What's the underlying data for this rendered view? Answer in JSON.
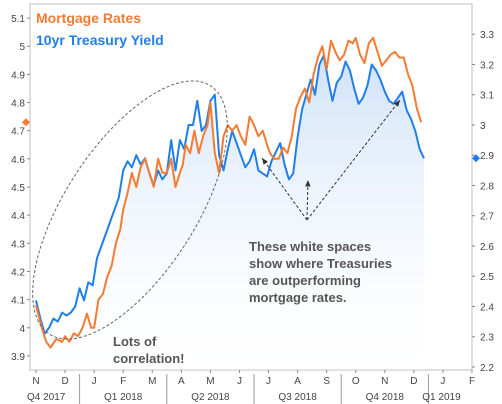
{
  "chart_data": {
    "type": "line",
    "title": "",
    "legend": [
      "Mortgage Rates",
      "10yr Treasury Yield"
    ],
    "legend_placement": "top-left",
    "colors": {
      "mortgage": "#f47b32",
      "treasury": "#1f7ee8",
      "fill_top": "#cfe2f7",
      "grid": "#bfbfbf",
      "annotation_text": "#555555"
    },
    "left_axis": {
      "label": "",
      "range": [
        3.85,
        5.15
      ],
      "ticks": [
        "3.9",
        "4",
        "4.1",
        "4.2",
        "4.3",
        "4.4",
        "4.5",
        "4.6",
        "4.7",
        "4.8",
        "4.9",
        "5",
        "5.1"
      ]
    },
    "right_axis": {
      "label": "",
      "range": [
        2.19,
        3.4
      ],
      "ticks": [
        "2.2",
        "2.3",
        "2.4",
        "2.5",
        "2.6",
        "2.7",
        "2.8",
        "2.9",
        "3",
        "3.1",
        "3.2",
        "3.3"
      ]
    },
    "x_months": [
      "N",
      "D",
      "J",
      "F",
      "M",
      "A",
      "M",
      "J",
      "J",
      "A",
      "S",
      "O",
      "N",
      "D",
      "J",
      "F"
    ],
    "x_quarters": [
      "Q4 2017",
      "Q1 2018",
      "Q2 2018",
      "Q3 2018",
      "Q4 2018",
      "Q1 2019"
    ],
    "last_values": {
      "mortgage": 4.73,
      "treasury": 2.89
    },
    "series": [
      {
        "name": "Mortgage Rates",
        "axis": "left",
        "x": [
          0,
          0.2,
          0.35,
          0.5,
          0.7,
          0.9,
          1.0,
          1.15,
          1.3,
          1.45,
          1.6,
          1.75,
          1.9,
          2.0,
          2.15,
          2.3,
          2.45,
          2.6,
          2.75,
          2.9,
          3.0,
          3.15,
          3.3,
          3.45,
          3.6,
          3.75,
          3.9,
          4.05,
          4.2,
          4.35,
          4.5,
          4.65,
          4.8,
          4.95,
          5.05,
          5.15,
          5.3,
          5.45,
          5.6,
          5.75,
          5.9,
          6.0,
          6.15,
          6.3,
          6.45,
          6.6,
          6.75,
          6.9,
          7.05,
          7.2,
          7.35,
          7.5,
          7.65,
          7.8,
          7.95,
          8.05,
          8.2,
          8.35,
          8.5,
          8.65,
          8.8,
          8.95,
          9.1,
          9.25,
          9.4,
          9.55,
          9.7,
          9.85,
          10.0,
          10.15,
          10.3,
          10.45,
          10.6,
          10.75,
          10.9,
          11.0,
          11.15,
          11.3,
          11.45,
          11.6,
          11.75,
          11.9,
          12.05,
          12.2,
          12.35,
          12.5,
          12.65,
          12.8,
          12.95,
          13.1,
          13.25
        ],
        "values": [
          4.08,
          4.0,
          3.95,
          3.93,
          3.96,
          3.95,
          3.97,
          3.95,
          3.98,
          3.97,
          4.0,
          4.05,
          4.0,
          4.0,
          4.1,
          4.12,
          4.18,
          4.22,
          4.3,
          4.35,
          4.42,
          4.48,
          4.55,
          4.5,
          4.57,
          4.6,
          4.55,
          4.5,
          4.6,
          4.55,
          4.55,
          4.6,
          4.5,
          4.55,
          4.58,
          4.65,
          4.62,
          4.7,
          4.62,
          4.68,
          4.72,
          4.8,
          4.62,
          4.55,
          4.68,
          4.72,
          4.7,
          4.72,
          4.68,
          4.65,
          4.75,
          4.72,
          4.68,
          4.7,
          4.65,
          4.62,
          4.6,
          4.6,
          4.64,
          4.62,
          4.68,
          4.78,
          4.82,
          4.85,
          4.8,
          4.9,
          4.96,
          5.0,
          4.92,
          5.02,
          4.98,
          4.95,
          4.97,
          5.02,
          5.01,
          5.03,
          4.97,
          4.94,
          5.01,
          5.03,
          4.98,
          4.93,
          4.95,
          4.97,
          4.98,
          4.96,
          4.96,
          4.9,
          4.86,
          4.78,
          4.73
        ]
      },
      {
        "name": "10yr Treasury Yield",
        "axis": "right",
        "x": [
          0,
          0.15,
          0.3,
          0.45,
          0.6,
          0.75,
          0.9,
          1.05,
          1.2,
          1.35,
          1.5,
          1.65,
          1.8,
          1.95,
          2.1,
          2.25,
          2.4,
          2.55,
          2.7,
          2.85,
          3.0,
          3.15,
          3.3,
          3.45,
          3.6,
          3.75,
          3.9,
          4.05,
          4.2,
          4.35,
          4.5,
          4.65,
          4.8,
          4.95,
          5.1,
          5.25,
          5.4,
          5.55,
          5.7,
          5.85,
          6.0,
          6.15,
          6.3,
          6.45,
          6.6,
          6.75,
          6.9,
          7.05,
          7.2,
          7.35,
          7.5,
          7.65,
          7.8,
          7.95,
          8.1,
          8.25,
          8.4,
          8.55,
          8.7,
          8.85,
          9.0,
          9.15,
          9.3,
          9.45,
          9.6,
          9.75,
          9.9,
          10.05,
          10.2,
          10.35,
          10.5,
          10.65,
          10.8,
          10.95,
          11.1,
          11.25,
          11.4,
          11.55,
          11.7,
          11.85,
          12.0,
          12.15,
          12.3,
          12.45,
          12.6,
          12.75,
          12.9,
          13.05,
          13.2,
          13.35
        ],
        "values": [
          2.42,
          2.36,
          2.31,
          2.33,
          2.36,
          2.35,
          2.38,
          2.37,
          2.38,
          2.4,
          2.46,
          2.42,
          2.48,
          2.47,
          2.56,
          2.6,
          2.64,
          2.68,
          2.72,
          2.76,
          2.85,
          2.88,
          2.86,
          2.9,
          2.87,
          2.89,
          2.84,
          2.8,
          2.85,
          2.82,
          2.84,
          2.95,
          2.85,
          2.95,
          2.92,
          3.0,
          3.0,
          3.08,
          2.98,
          3.0,
          3.08,
          3.1,
          2.9,
          2.85,
          2.92,
          2.98,
          2.94,
          2.9,
          2.86,
          2.88,
          2.92,
          2.85,
          2.84,
          2.83,
          2.88,
          2.91,
          2.94,
          2.87,
          2.82,
          2.84,
          2.96,
          3.05,
          3.1,
          3.15,
          3.1,
          3.2,
          3.23,
          3.15,
          3.08,
          3.14,
          3.16,
          3.21,
          3.18,
          3.12,
          3.07,
          3.09,
          3.13,
          3.2,
          3.18,
          3.15,
          3.11,
          3.08,
          3.07,
          3.09,
          3.11,
          3.05,
          3.02,
          2.98,
          2.92,
          2.89
        ]
      }
    ],
    "annotations": [
      "These white spaces show where Treasuries are outperforming mortgage rates.",
      "Lots of correlation!"
    ]
  }
}
